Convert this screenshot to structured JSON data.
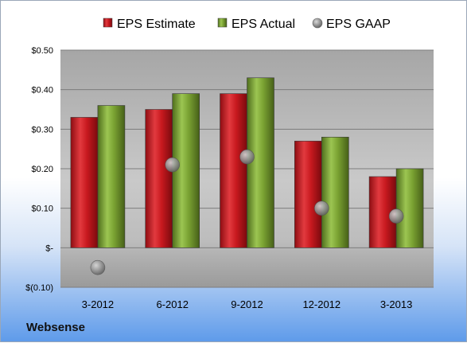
{
  "company": "Websense",
  "chart_data": {
    "type": "bar",
    "title": "",
    "xlabel": "",
    "ylabel": "",
    "categories": [
      "3-2012",
      "6-2012",
      "9-2012",
      "12-2012",
      "3-2013"
    ],
    "series": [
      {
        "name": "EPS Estimate",
        "kind": "bar",
        "color": "#c8191f",
        "values": [
          0.33,
          0.35,
          0.39,
          0.27,
          0.18
        ]
      },
      {
        "name": "EPS Actual",
        "kind": "bar",
        "color": "#7aa232",
        "values": [
          0.36,
          0.39,
          0.43,
          0.28,
          0.2
        ]
      },
      {
        "name": "EPS GAAP",
        "kind": "marker",
        "color": "#8a8a8a",
        "values": [
          -0.05,
          0.21,
          0.23,
          0.1,
          0.08
        ]
      }
    ],
    "ylim": [
      -0.1,
      0.5
    ],
    "yticks": [
      {
        "value": 0.5,
        "label": "$0.50"
      },
      {
        "value": 0.4,
        "label": "$0.40"
      },
      {
        "value": 0.3,
        "label": "$0.30"
      },
      {
        "value": 0.2,
        "label": "$0.20"
      },
      {
        "value": 0.1,
        "label": "$0.10"
      },
      {
        "value": 0.0,
        "label": "$-"
      },
      {
        "value": -0.1,
        "label": "$(0.10)"
      }
    ],
    "grid": true,
    "legend_position": "top"
  }
}
